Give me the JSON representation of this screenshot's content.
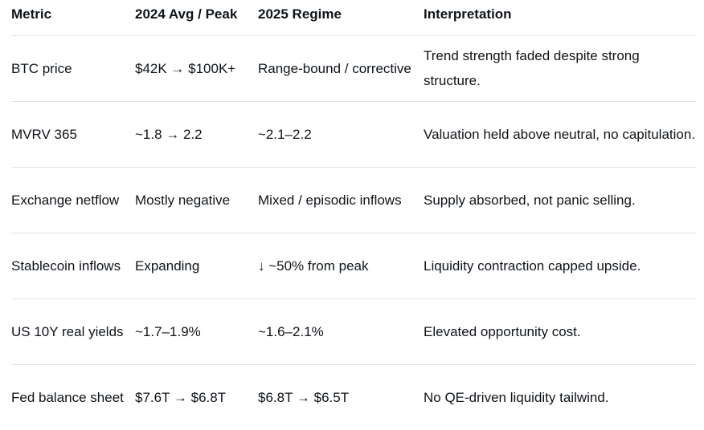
{
  "headers": [
    "Metric",
    "2024 Avg / Peak",
    "2025 Regime",
    "Interpretation"
  ],
  "rows": [
    {
      "metric": "BTC price",
      "avg_2024": "$42K → $100K+",
      "regime_2025": "Range-bound / corrective",
      "interpretation": "Trend strength faded despite strong structure."
    },
    {
      "metric": "MVRV 365",
      "avg_2024": "~1.8 → 2.2",
      "regime_2025": "~2.1–2.2",
      "interpretation": "Valuation held above neutral, no capitulation."
    },
    {
      "metric": "Exchange netflow",
      "avg_2024": "Mostly negative",
      "regime_2025": "Mixed / episodic inflows",
      "interpretation": "Supply absorbed, not panic selling."
    },
    {
      "metric": "Stablecoin inflows",
      "avg_2024": "Expanding",
      "regime_2025": "↓ ~50% from peak",
      "interpretation": "Liquidity contraction capped upside."
    },
    {
      "metric": "US 10Y real yields",
      "avg_2024": "~1.7–1.9%",
      "regime_2025": "~1.6–2.1%",
      "interpretation": "Elevated opportunity cost."
    },
    {
      "metric": "Fed balance sheet",
      "avg_2024": "$7.6T → $6.8T",
      "regime_2025": "$6.8T → $6.5T",
      "interpretation": "No QE-driven liquidity tailwind."
    }
  ]
}
